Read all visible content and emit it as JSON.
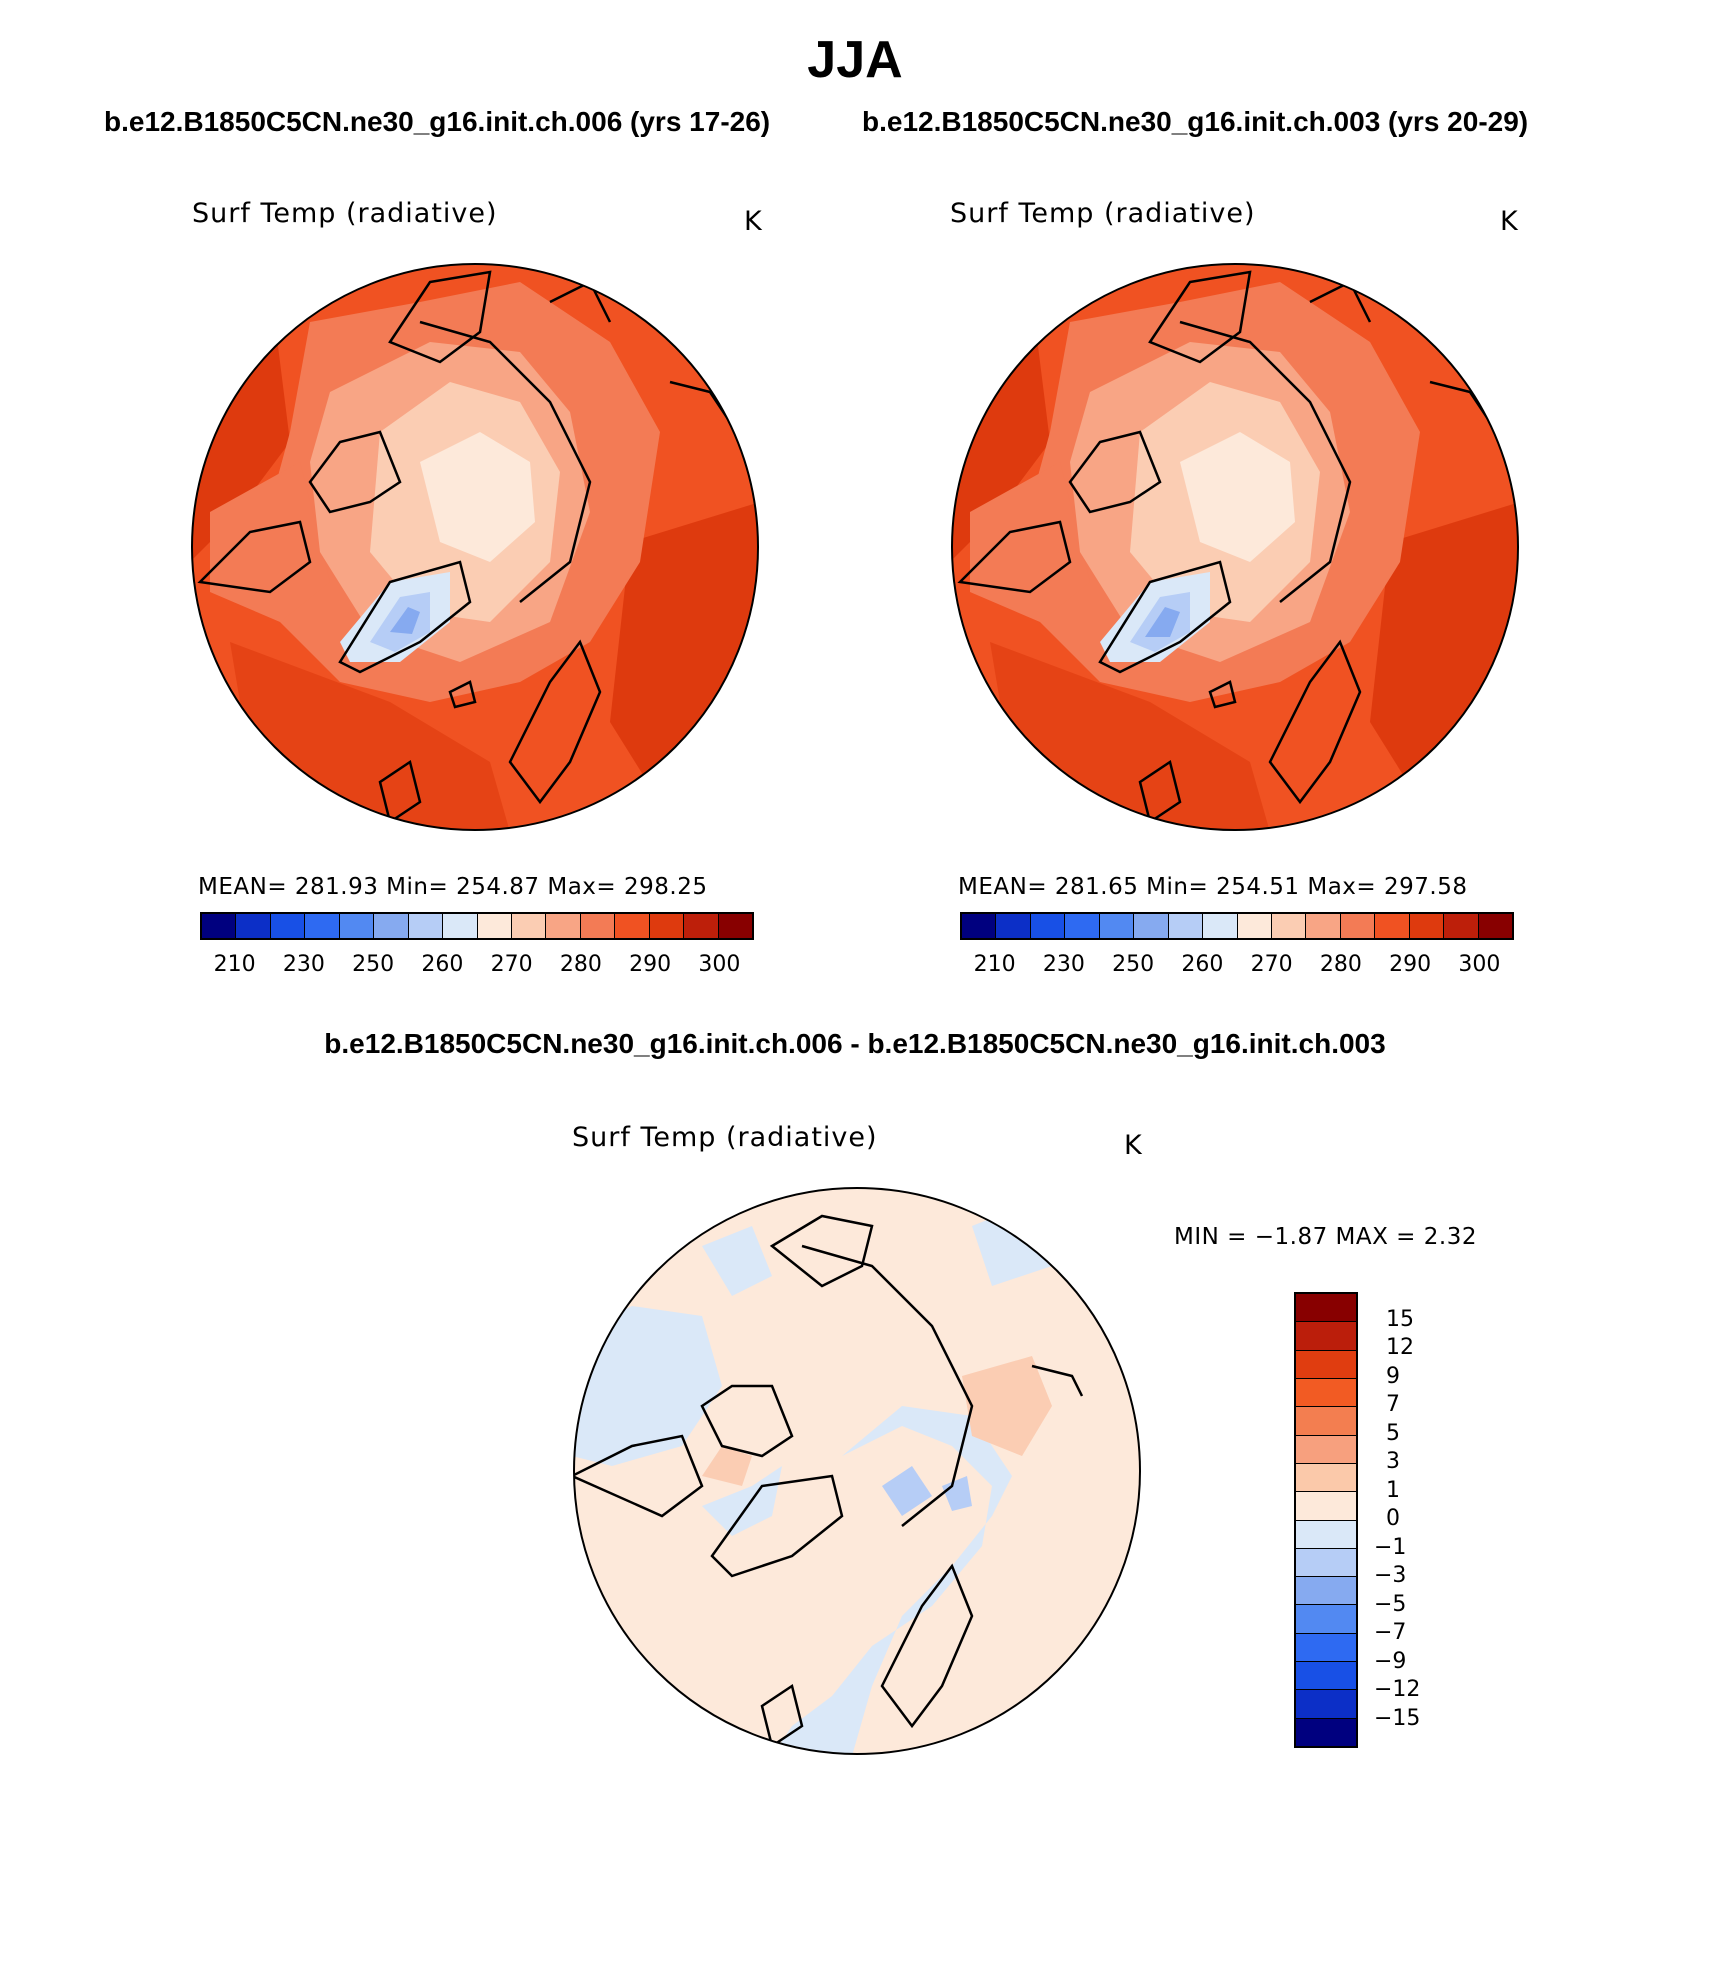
{
  "title": "JJA",
  "case_a_label": "b.e12.B1850C5CN.ne30_g16.init.ch.006 (yrs 17-26)",
  "case_b_label": "b.e12.B1850C5CN.ne30_g16.init.ch.003 (yrs 20-29)",
  "diff_title": "b.e12.B1850C5CN.ne30_g16.init.ch.006 - b.e12.B1850C5CN.ne30_g16.init.ch.003",
  "panels": [
    {
      "id": "case-a",
      "variable": "Surf Temp (radiative)",
      "units": "K",
      "stats": "MEAN=  281.93    Min=  254.87    Max=  298.25"
    },
    {
      "id": "case-b",
      "variable": "Surf Temp (radiative)",
      "units": "K",
      "stats": "MEAN=  281.65    Min=  254.51    Max=  297.58"
    }
  ],
  "diff_panel": {
    "variable": "Surf Temp (radiative)",
    "units": "K",
    "stats": "MIN =    −1.87  MAX =      2.32"
  },
  "abs_colorbar": {
    "colors": [
      "#00007f",
      "#0c2fc7",
      "#1850e6",
      "#2e6af2",
      "#5289f2",
      "#86aaf0",
      "#b6cdf6",
      "#dae8f8",
      "#fde9da",
      "#fbcdb3",
      "#f8a585",
      "#f37b55",
      "#f05222",
      "#de3a0e",
      "#bd1f0a",
      "#880000"
    ],
    "tick_labels": [
      "210",
      "230",
      "250",
      "260",
      "270",
      "280",
      "290",
      "300"
    ]
  },
  "diff_colorbar": {
    "colors": [
      "#880000",
      "#bb1e0b",
      "#e03d10",
      "#f25b23",
      "#f37e50",
      "#f7a07e",
      "#fbc9aa",
      "#fde9da",
      "#dae8f8",
      "#b6cdf6",
      "#86aaf0",
      "#5289f2",
      "#2e6af2",
      "#1850e6",
      "#0c2fc7",
      "#00007f"
    ],
    "tick_labels": [
      "15",
      "12",
      "9",
      "7",
      "5",
      "3",
      "1",
      "0",
      "−1",
      "−3",
      "−5",
      "−7",
      "−9",
      "−12",
      "−15"
    ]
  }
}
